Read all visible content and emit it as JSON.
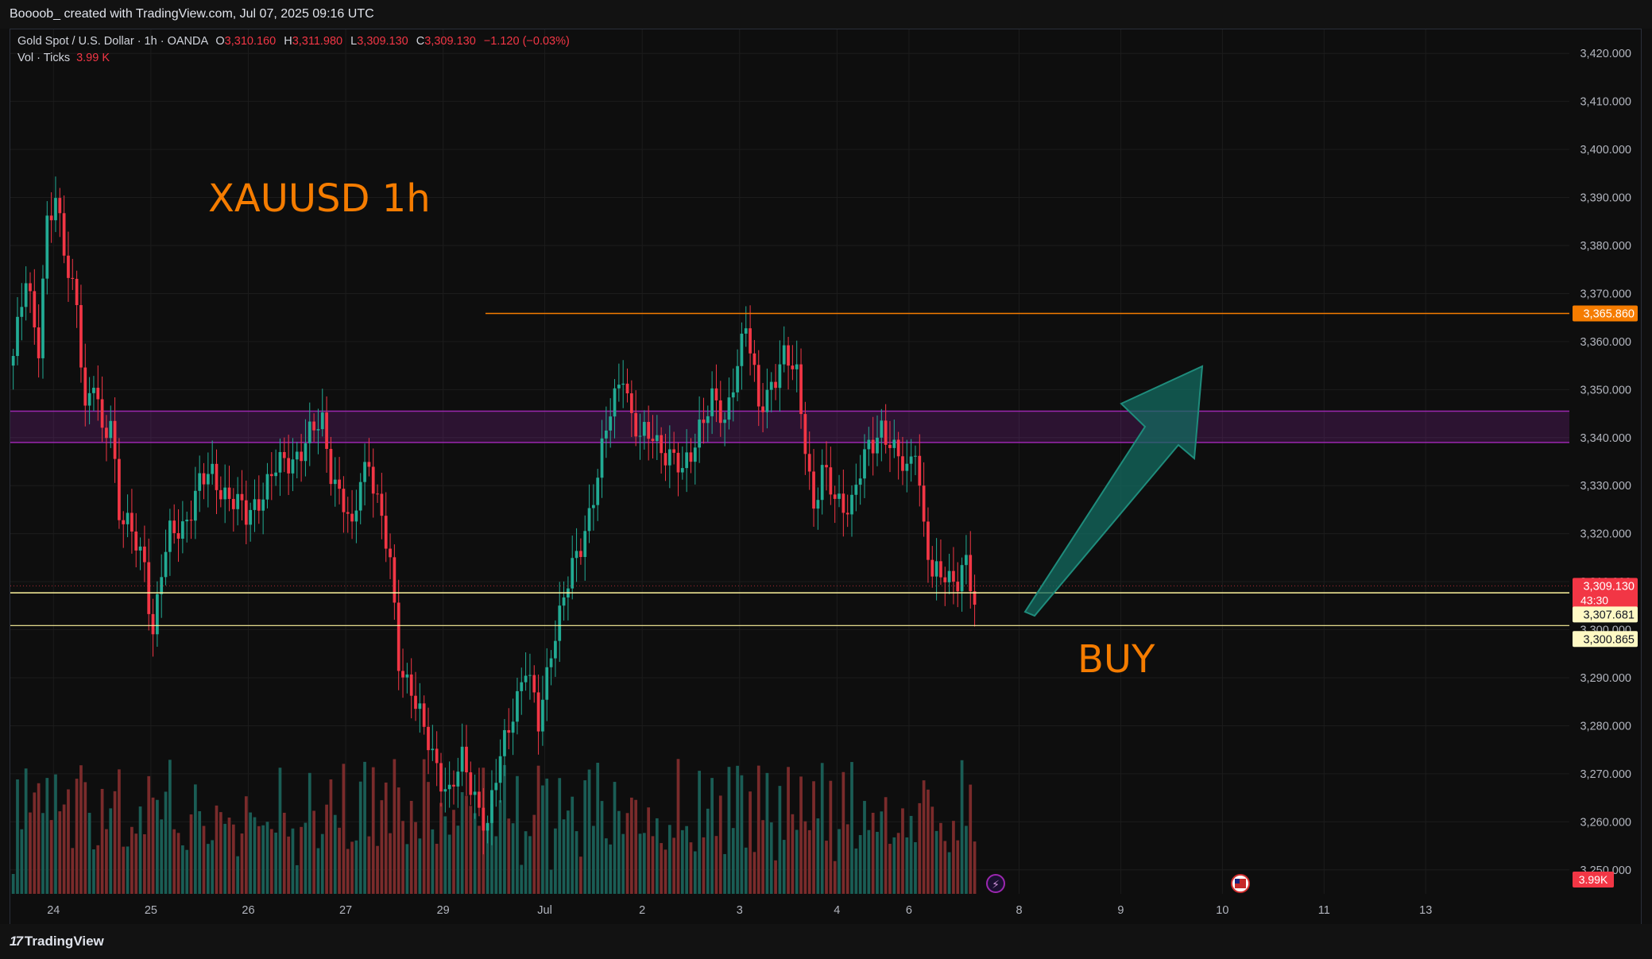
{
  "header": {
    "credit": "Boooob_ created with TradingView.com, Jul 07, 2025 09:16 UTC"
  },
  "legend": {
    "symbol": "Gold Spot / U.S. Dollar · 1h · OANDA",
    "o_label": "O",
    "o_value": "3,310.160",
    "h_label": "H",
    "h_value": "3,311.980",
    "l_label": "L",
    "l_value": "3,309.130",
    "c_label": "C",
    "c_value": "3,309.130",
    "change": "−1.120 (−0.03%)",
    "vol_label": "Vol · Ticks",
    "vol_value": "3.99 K"
  },
  "annotations": {
    "title_text": "XAUUSD 1h",
    "buy_text": "BUY"
  },
  "footer": {
    "brand": "TradingView"
  },
  "colors": {
    "up": "#22ab94",
    "down": "#f23645",
    "vol_up": "#1a5d55",
    "vol_down": "#7a2b2b",
    "resistance_line": "#f57c00",
    "zone": "#9c27b0",
    "support_line": "#fff59d",
    "arrow": "#136b60",
    "text_orange": "#f57c00"
  },
  "chart_data": {
    "type": "candlestick",
    "symbol": "XAUUSD",
    "timeframe": "1h",
    "ylim": [
      3245,
      3425
    ],
    "y_ticks": [
      "3,420.000",
      "3,410.000",
      "3,400.000",
      "3,390.000",
      "3,380.000",
      "3,370.000",
      "3,360.000",
      "3,350.000",
      "3,340.000",
      "3,330.000",
      "3,320.000",
      "3,310.000",
      "3,300.000",
      "3,290.000",
      "3,280.000",
      "3,270.000",
      "3,260.000",
      "3,250.000"
    ],
    "y_tick_values": [
      3420,
      3410,
      3400,
      3390,
      3380,
      3370,
      3360,
      3350,
      3340,
      3330,
      3320,
      3310,
      3300,
      3290,
      3280,
      3270,
      3260,
      3250
    ],
    "x_ticks": [
      "24",
      "25",
      "26",
      "27",
      "29",
      "Jul",
      "2",
      "3",
      "4",
      "6",
      "8",
      "9",
      "10",
      "11",
      "13"
    ],
    "x_tick_bars": [
      10,
      33,
      56,
      79,
      102,
      126,
      149,
      172,
      195,
      212,
      238,
      262,
      286,
      310,
      334
    ],
    "bar_count_area": 365,
    "anchors": [
      [
        0,
        3357
      ],
      [
        3,
        3372
      ],
      [
        6,
        3360
      ],
      [
        8,
        3386
      ],
      [
        10,
        3388
      ],
      [
        13,
        3374
      ],
      [
        15,
        3370
      ],
      [
        17,
        3345
      ],
      [
        19,
        3351
      ],
      [
        21,
        3340
      ],
      [
        23,
        3345
      ],
      [
        25,
        3325
      ],
      [
        28,
        3319
      ],
      [
        31,
        3314
      ],
      [
        33,
        3300
      ],
      [
        35,
        3312
      ],
      [
        37,
        3319
      ],
      [
        40,
        3322
      ],
      [
        44,
        3330
      ],
      [
        47,
        3332
      ],
      [
        51,
        3328
      ],
      [
        55,
        3323
      ],
      [
        58,
        3328
      ],
      [
        62,
        3333
      ],
      [
        66,
        3336
      ],
      [
        70,
        3340
      ],
      [
        73,
        3343
      ],
      [
        75,
        3334
      ],
      [
        78,
        3326
      ],
      [
        80,
        3319
      ],
      [
        82,
        3332
      ],
      [
        84,
        3336
      ],
      [
        87,
        3322
      ],
      [
        89,
        3313
      ],
      [
        91,
        3294
      ],
      [
        94,
        3288
      ],
      [
        97,
        3278
      ],
      [
        100,
        3272
      ],
      [
        103,
        3266
      ],
      [
        106,
        3272
      ],
      [
        109,
        3266
      ],
      [
        112,
        3259
      ],
      [
        115,
        3273
      ],
      [
        118,
        3284
      ],
      [
        121,
        3292
      ],
      [
        124,
        3280
      ],
      [
        127,
        3297
      ],
      [
        130,
        3306
      ],
      [
        134,
        3318
      ],
      [
        138,
        3332
      ],
      [
        141,
        3345
      ],
      [
        144,
        3355
      ],
      [
        146,
        3344
      ],
      [
        148,
        3339
      ],
      [
        151,
        3341
      ],
      [
        155,
        3336
      ],
      [
        158,
        3332
      ],
      [
        162,
        3343
      ],
      [
        165,
        3347
      ],
      [
        168,
        3343
      ],
      [
        170,
        3353
      ],
      [
        173,
        3363
      ],
      [
        176,
        3346
      ],
      [
        179,
        3352
      ],
      [
        182,
        3356
      ],
      [
        185,
        3353
      ],
      [
        187,
        3340
      ],
      [
        189,
        3325
      ],
      [
        191,
        3332
      ],
      [
        194,
        3328
      ],
      [
        198,
        3326
      ],
      [
        202,
        3338
      ],
      [
        205,
        3343
      ],
      [
        208,
        3336
      ],
      [
        211,
        3333
      ],
      [
        213,
        3340
      ],
      [
        215,
        3321
      ],
      [
        217,
        3310
      ],
      [
        220,
        3312
      ],
      [
        223,
        3311
      ],
      [
        225,
        3313
      ],
      [
        227,
        3304
      ]
    ],
    "volume_label": "3.99K",
    "horizontal_lines": [
      {
        "name": "resistance",
        "price": 3365.86,
        "label": "3,365.860"
      },
      {
        "name": "support-upper",
        "price": 3307.681,
        "label": "3,307.681"
      },
      {
        "name": "support-lower",
        "price": 3300.865,
        "label": "3,300.865"
      }
    ],
    "zone": {
      "top": 3345.5,
      "bottom": 3339
    },
    "last_price": {
      "label": "3,309.130",
      "countdown": "43:30",
      "price": 3309.13
    }
  }
}
